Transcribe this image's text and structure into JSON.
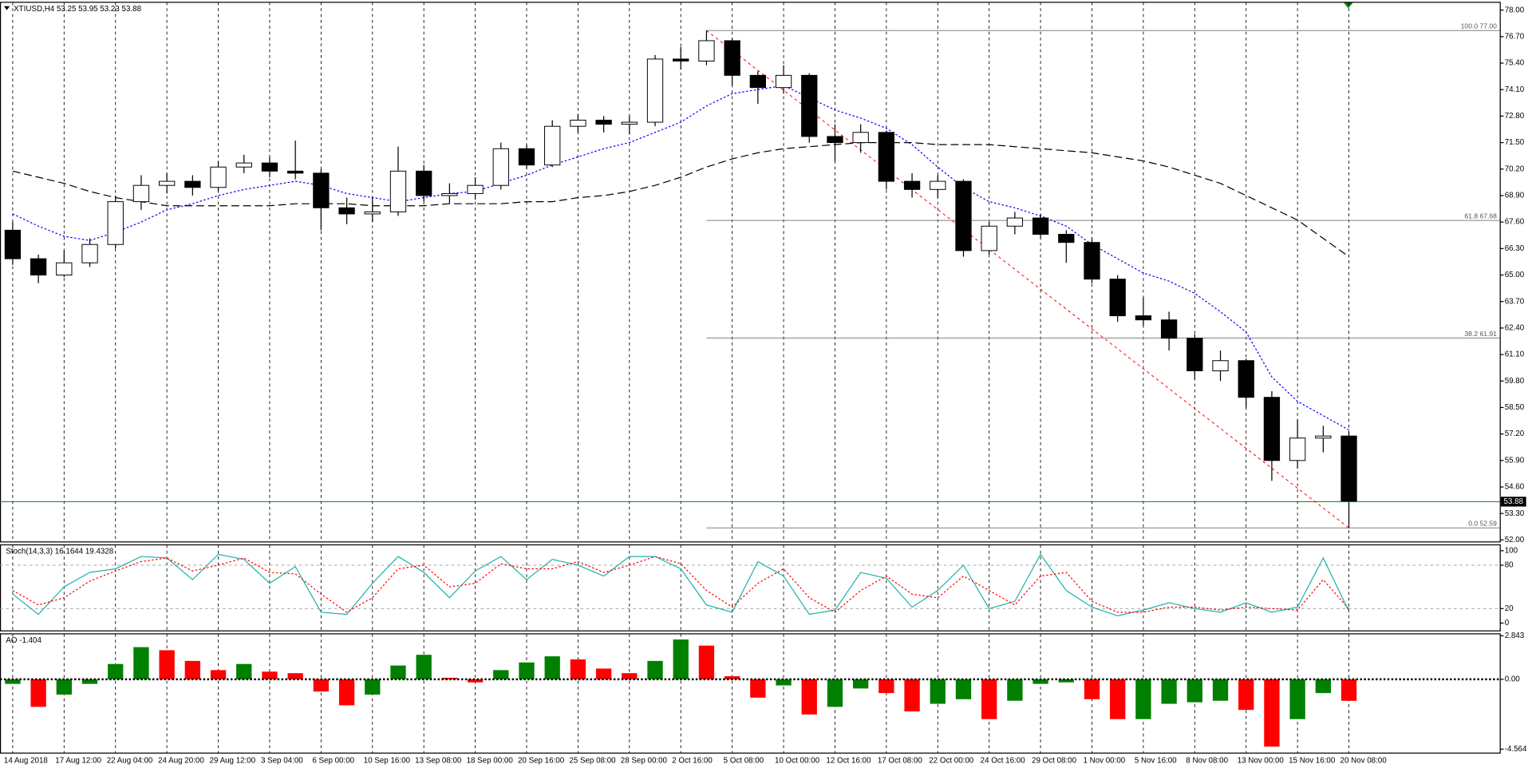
{
  "chart_data": [
    {
      "type": "candlestick",
      "title": "XTIUSD,H4  53.25 53.95 53.23 53.88",
      "categories": [
        "14 Aug 2018",
        null,
        "17 Aug 12:00",
        null,
        "22 Aug 04:00",
        null,
        "24 Aug 20:00",
        null,
        "29 Aug 12:00",
        null,
        "3 Sep 04:00",
        null,
        "6 Sep 00:00",
        null,
        "10 Sep 16:00",
        null,
        "13 Sep 08:00",
        null,
        "18 Sep 00:00",
        null,
        "20 Sep 16:00",
        null,
        "25 Sep 08:00",
        null,
        "28 Sep 00:00",
        null,
        "2 Oct 16:00",
        null,
        "5 Oct 08:00",
        null,
        "10 Oct 00:00",
        null,
        "12 Oct 16:00",
        null,
        "17 Oct 08:00",
        null,
        "22 Oct 00:00",
        null,
        "24 Oct 16:00",
        null,
        "29 Oct 08:00",
        null,
        "1 Nov 00:00",
        null,
        "5 Nov 16:00",
        null,
        "8 Nov 08:00",
        null,
        "13 Nov 00:00",
        null,
        "15 Nov 16:00",
        null,
        "20 Nov 08:00"
      ],
      "open": [
        67.2,
        65.8,
        65.0,
        65.6,
        66.5,
        68.6,
        69.4,
        69.6,
        69.3,
        70.3,
        70.5,
        70.1,
        70.0,
        68.3,
        68.0,
        68.1,
        70.1,
        68.9,
        69.0,
        69.4,
        71.2,
        70.4,
        72.3,
        72.6,
        72.4,
        72.5,
        75.6,
        75.5,
        76.5,
        74.8,
        74.2,
        74.8,
        71.8,
        71.5,
        72.0,
        69.6,
        69.2,
        69.6,
        66.2,
        67.4,
        67.8,
        67.0,
        66.6,
        64.8,
        63.0,
        62.8,
        61.9,
        60.3,
        60.8,
        59.0,
        55.9,
        57.0,
        57.1
      ],
      "high": [
        67.6,
        66.0,
        66.2,
        66.8,
        68.9,
        69.9,
        70.0,
        69.9,
        70.6,
        70.9,
        70.8,
        71.6,
        70.2,
        68.8,
        68.8,
        71.3,
        70.4,
        69.5,
        69.8,
        71.5,
        71.4,
        72.6,
        72.9,
        72.8,
        72.8,
        75.8,
        76.2,
        77.0,
        76.6,
        75.0,
        75.3,
        74.9,
        72.4,
        72.4,
        72.1,
        70.0,
        69.9,
        69.7,
        67.6,
        68.1,
        68.0,
        67.2,
        66.8,
        65.0,
        63.9,
        63.2,
        62.1,
        61.3,
        60.9,
        59.3,
        57.9,
        57.6,
        57.3
      ],
      "low": [
        65.5,
        64.6,
        64.9,
        65.4,
        66.3,
        68.2,
        69.0,
        68.9,
        69.1,
        70.0,
        69.8,
        69.7,
        67.2,
        67.5,
        67.6,
        67.9,
        68.6,
        68.5,
        68.7,
        69.2,
        70.2,
        70.3,
        72.0,
        72.0,
        71.9,
        72.3,
        75.1,
        75.3,
        74.3,
        73.4,
        73.9,
        71.5,
        70.6,
        71.0,
        69.2,
        68.8,
        68.8,
        65.9,
        66.0,
        67.0,
        66.8,
        65.6,
        64.6,
        62.7,
        62.5,
        61.3,
        59.9,
        59.8,
        58.5,
        54.9,
        55.5,
        56.3,
        52.59
      ],
      "close": [
        65.8,
        65.0,
        65.6,
        66.5,
        68.6,
        69.4,
        69.6,
        69.3,
        70.3,
        70.5,
        70.1,
        70.0,
        68.3,
        68.0,
        68.1,
        70.1,
        68.9,
        69.0,
        69.4,
        71.2,
        70.4,
        72.3,
        72.6,
        72.4,
        72.5,
        75.6,
        75.5,
        76.5,
        74.8,
        74.2,
        74.8,
        71.8,
        71.5,
        72.0,
        69.6,
        69.2,
        69.6,
        66.2,
        67.4,
        67.8,
        67.0,
        66.6,
        64.8,
        63.0,
        62.8,
        61.9,
        60.3,
        60.8,
        59.0,
        55.9,
        57.0,
        57.1,
        53.88
      ],
      "up_color": "#ffffff",
      "down_color": "#000000",
      "wick_color": "#000000",
      "series": [
        {
          "color": "#0000ff",
          "dash": "2,2",
          "values": [
            68.0,
            67.4,
            66.9,
            66.7,
            67.1,
            67.6,
            68.2,
            68.5,
            68.9,
            69.2,
            69.4,
            69.6,
            69.4,
            69.0,
            68.8,
            68.6,
            68.8,
            69.0,
            69.1,
            69.5,
            69.9,
            70.4,
            70.8,
            71.2,
            71.5,
            72.0,
            72.5,
            73.3,
            73.9,
            74.1,
            74.3,
            73.7,
            73.1,
            72.7,
            72.2,
            71.4,
            70.3,
            69.3,
            68.6,
            68.3,
            67.9,
            67.4,
            66.5,
            65.8,
            65.1,
            64.7,
            64.1,
            63.2,
            62.2,
            60.0,
            58.8,
            58.1,
            57.4
          ]
        },
        {
          "color": "#000000",
          "dash": "8,4",
          "values": [
            70.1,
            69.8,
            69.5,
            69.1,
            68.8,
            68.6,
            68.4,
            68.4,
            68.4,
            68.4,
            68.4,
            68.5,
            68.5,
            68.5,
            68.4,
            68.4,
            68.4,
            68.5,
            68.5,
            68.5,
            68.6,
            68.6,
            68.8,
            68.9,
            69.1,
            69.4,
            69.8,
            70.3,
            70.7,
            71.0,
            71.2,
            71.3,
            71.4,
            71.5,
            71.5,
            71.5,
            71.4,
            71.4,
            71.4,
            71.3,
            71.2,
            71.1,
            71.0,
            70.8,
            70.6,
            70.3,
            69.9,
            69.5,
            68.9,
            68.3,
            67.7,
            66.8,
            65.9
          ]
        }
      ],
      "fib_levels": [
        {
          "value": 77.0,
          "label": "100.0 77.00"
        },
        {
          "value": 67.68,
          "label": "61.8 67.68"
        },
        {
          "value": 61.91,
          "label": "38.2 61.91"
        },
        {
          "value": 52.59,
          "label": "0.0 52.59"
        }
      ],
      "fib_color": "#808080",
      "trend_color": "#ff0000",
      "last_price": 53.88,
      "last_price_color": "#008000",
      "ylim": [
        52.0,
        78.0
      ],
      "yticks": [
        {
          "value": 78.0,
          "label": "78.00"
        },
        {
          "value": 76.7,
          "label": "76.70"
        },
        {
          "value": 75.4,
          "label": "75.40"
        },
        {
          "value": 74.1,
          "label": "74.10"
        },
        {
          "value": 72.8,
          "label": "72.80"
        },
        {
          "value": 71.5,
          "label": "71.50"
        },
        {
          "value": 70.2,
          "label": "70.20"
        },
        {
          "value": 68.9,
          "label": "68.90"
        },
        {
          "value": 67.6,
          "label": "67.60"
        },
        {
          "value": 66.3,
          "label": "66.30"
        },
        {
          "value": 65.0,
          "label": "65.00"
        },
        {
          "value": 63.7,
          "label": "63.70"
        },
        {
          "value": 62.4,
          "label": "62.40"
        },
        {
          "value": 61.1,
          "label": "61.10"
        },
        {
          "value": 59.8,
          "label": "59.80"
        },
        {
          "value": 58.5,
          "label": "58.50"
        },
        {
          "value": 57.2,
          "label": "57.20"
        },
        {
          "value": 55.9,
          "label": "55.90"
        },
        {
          "value": 54.6,
          "label": "54.60"
        },
        {
          "value": 53.3,
          "label": "53.30"
        },
        {
          "value": 52.0,
          "label": "52.00"
        }
      ],
      "grid": true
    },
    {
      "type": "line",
      "title": "Stoch(14,3,3) 16.1644 19.4328",
      "series": [
        {
          "color": "#20b2aa",
          "dash": "none",
          "values": [
            40,
            12,
            50,
            70,
            75,
            92,
            90,
            60,
            95,
            88,
            55,
            78,
            15,
            12,
            55,
            92,
            70,
            35,
            72,
            92,
            60,
            88,
            80,
            65,
            92,
            92,
            75,
            25,
            15,
            85,
            65,
            12,
            18,
            70,
            62,
            22,
            45,
            80,
            20,
            30,
            95,
            45,
            22,
            10,
            18,
            28,
            20,
            15,
            28,
            15,
            22,
            90,
            16.1644
          ]
        },
        {
          "color": "#ff0000",
          "dash": "2,2",
          "values": [
            45,
            25,
            35,
            58,
            72,
            85,
            90,
            72,
            80,
            90,
            70,
            68,
            40,
            15,
            35,
            75,
            80,
            50,
            55,
            82,
            75,
            75,
            85,
            70,
            80,
            92,
            82,
            45,
            22,
            55,
            75,
            35,
            15,
            45,
            65,
            40,
            35,
            65,
            45,
            25,
            65,
            70,
            30,
            15,
            15,
            22,
            22,
            18,
            22,
            20,
            18,
            60,
            19.4328
          ]
        }
      ],
      "levels": [
        80,
        20
      ],
      "ylim": [
        0,
        100
      ],
      "yticks": [
        100,
        80,
        20,
        0
      ]
    },
    {
      "type": "bar",
      "title": "AO -1.404",
      "values": [
        -0.3,
        -1.8,
        -1.0,
        -0.3,
        1.0,
        2.1,
        1.9,
        1.2,
        0.6,
        1.0,
        0.5,
        0.4,
        -0.8,
        -1.7,
        -1.0,
        0.9,
        1.6,
        0.1,
        -0.2,
        0.6,
        1.1,
        1.5,
        1.3,
        0.7,
        0.4,
        1.2,
        2.6,
        2.2,
        0.2,
        -1.2,
        -0.4,
        -2.3,
        -1.8,
        -0.6,
        -0.9,
        -2.1,
        -1.6,
        -1.3,
        -2.6,
        -1.4,
        -0.3,
        -0.2,
        -1.3,
        -2.6,
        -2.6,
        -1.6,
        -1.5,
        -1.4,
        -2.0,
        -4.4,
        -2.6,
        -0.9,
        -1.404
      ],
      "up_color": "#008000",
      "down_color": "#ff0000",
      "ylim": [
        -4.564,
        2.843
      ],
      "yticks": [
        2.843,
        {
          "value": 0,
          "label": "0.00"
        },
        -4.564
      ]
    }
  ]
}
